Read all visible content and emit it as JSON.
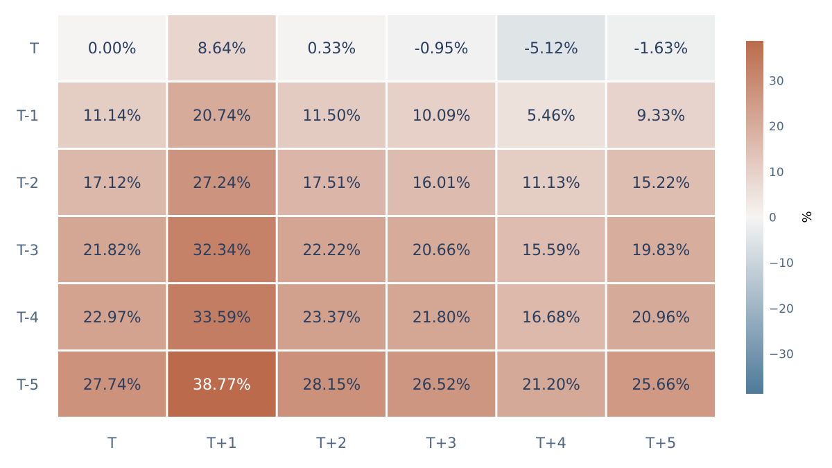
{
  "chart_data": {
    "type": "heatmap",
    "title": "",
    "xlabel": "",
    "ylabel": "",
    "x_categories": [
      "T",
      "T+1",
      "T+2",
      "T+3",
      "T+4",
      "T+5"
    ],
    "y_categories": [
      "T",
      "T-1",
      "T-2",
      "T-3",
      "T-4",
      "T-5"
    ],
    "values": [
      [
        0.0,
        8.64,
        0.33,
        -0.95,
        -5.12,
        -1.63
      ],
      [
        11.14,
        20.74,
        11.5,
        10.09,
        5.46,
        9.33
      ],
      [
        17.12,
        27.24,
        17.51,
        16.01,
        11.13,
        15.22
      ],
      [
        21.82,
        32.34,
        22.22,
        20.66,
        15.59,
        19.83
      ],
      [
        22.97,
        33.59,
        23.37,
        21.8,
        16.68,
        20.96
      ],
      [
        27.74,
        38.77,
        28.15,
        26.52,
        21.2,
        25.66
      ]
    ],
    "cell_labels": [
      [
        "0.00%",
        "8.64%",
        "0.33%",
        "-0.95%",
        "-5.12%",
        "-1.63%"
      ],
      [
        "11.14%",
        "20.74%",
        "11.50%",
        "10.09%",
        "5.46%",
        "9.33%"
      ],
      [
        "17.12%",
        "27.24%",
        "17.51%",
        "16.01%",
        "11.13%",
        "15.22%"
      ],
      [
        "21.82%",
        "32.34%",
        "22.22%",
        "20.66%",
        "15.59%",
        "19.83%"
      ],
      [
        "22.97%",
        "33.59%",
        "23.37%",
        "21.80%",
        "16.68%",
        "20.96%"
      ],
      [
        "27.74%",
        "38.77%",
        "28.15%",
        "26.52%",
        "21.20%",
        "25.66%"
      ]
    ],
    "colorbar": {
      "title": "%",
      "range": [
        -38.77,
        38.77
      ],
      "ticks": [
        30,
        20,
        10,
        0,
        -10,
        -20,
        -30
      ],
      "tick_labels": [
        "30",
        "20",
        "10",
        "0",
        "−10",
        "−20",
        "−30"
      ],
      "colors": {
        "negative": "#4e7a98",
        "neutral": "#f5f4f3",
        "positive": "#bb6b4c"
      }
    },
    "grid": false,
    "legend": "right"
  },
  "colors": {
    "text_dark": "#2a3f5f",
    "axis_text": "#506784",
    "light_text": "#ffffff",
    "background": "#ffffff"
  }
}
